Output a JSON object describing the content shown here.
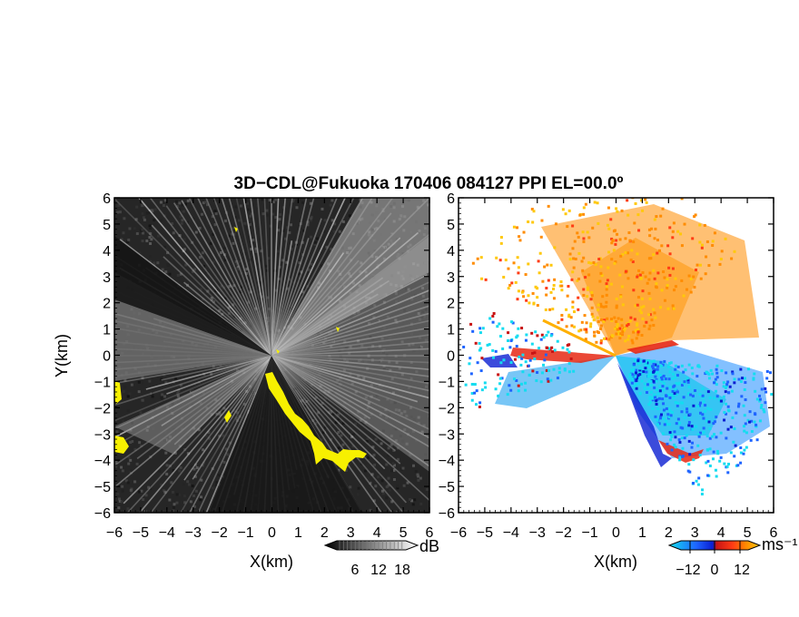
{
  "title": "3D−CDL@Fukuoka 170406 084127 PPI EL=00.0º",
  "colors": {
    "foreground": "#000000",
    "background": "#ffffff",
    "echo_mask": "#f7f000",
    "velocity_scale": [
      "#14dcf0",
      "#1e64ff",
      "#0a1ed2",
      "#c81414",
      "#ff3c14",
      "#ff8c00",
      "#ffc80a"
    ]
  },
  "chart_data": [
    {
      "type": "heatmap",
      "panel": "left",
      "quantity": "radar echo intensity (grayscale, dB)",
      "xlabel": "X(km)",
      "ylabel": "Y(km)",
      "xlim": [
        -6,
        6
      ],
      "ylim": [
        -6,
        6
      ],
      "x_ticks": [
        "−6",
        "−5",
        "−4",
        "−3",
        "−2",
        "−1",
        "0",
        "1",
        "2",
        "3",
        "4",
        "5",
        "6"
      ],
      "y_ticks": [
        "6",
        "5",
        "4",
        "3",
        "2",
        "1",
        "0",
        "−1",
        "−2",
        "−3",
        "−4",
        "−5",
        "−6"
      ],
      "colorbar": {
        "unit": "dB",
        "tick_labels": [
          "6",
          "12",
          "18"
        ],
        "range": [
          0,
          22
        ]
      }
    },
    {
      "type": "heatmap",
      "panel": "right",
      "quantity": "Doppler radial velocity",
      "xlabel": "X(km)",
      "xlim": [
        -6,
        6
      ],
      "ylim": [
        -6,
        6
      ],
      "x_ticks": [
        "−6",
        "−5",
        "−4",
        "−3",
        "−2",
        "−1",
        "0",
        "1",
        "2",
        "3",
        "4",
        "5",
        "6"
      ],
      "y_ticks": [
        "6",
        "5",
        "4",
        "3",
        "2",
        "1",
        "0",
        "−1",
        "−2",
        "−3",
        "−4",
        "−5",
        "−6"
      ],
      "colorbar": {
        "unit": "ms⁻¹",
        "tick_labels": [
          "−12",
          "0",
          "12"
        ],
        "range": [
          -15,
          15
        ]
      }
    }
  ]
}
